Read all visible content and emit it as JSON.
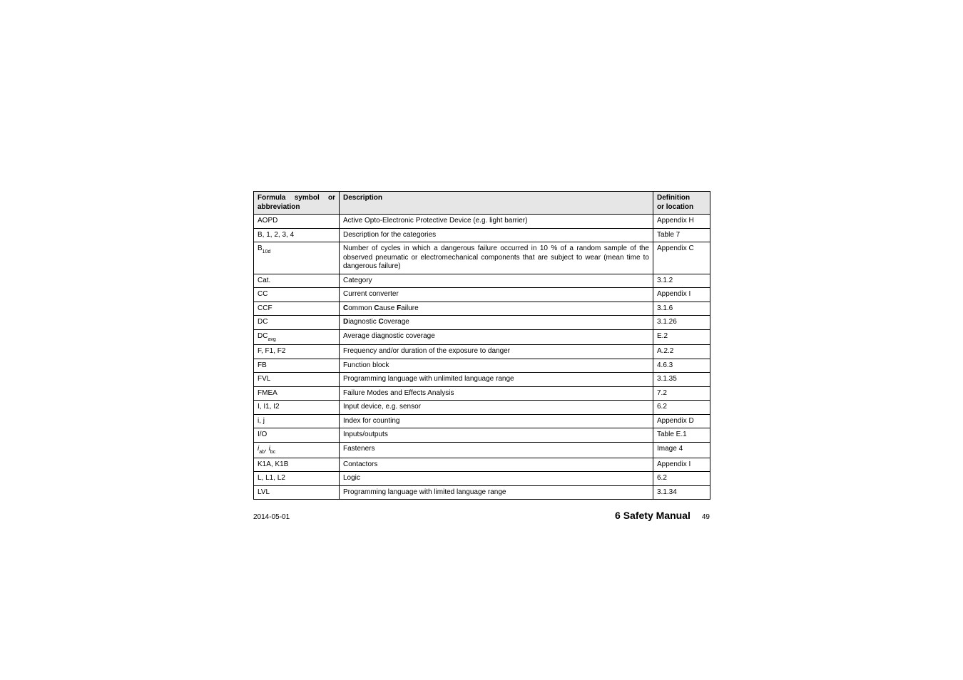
{
  "table": {
    "header": {
      "col1_line1_parts": [
        "Formula",
        "symbol",
        "or"
      ],
      "col1_line2": "abbreviation",
      "col2": "Description",
      "col3_line1": "Definition",
      "col3_line2": "or location"
    },
    "rows": [
      {
        "sym_plain": "AOPD",
        "desc": "Active Opto-Electronic Protective Device (e.g. light barrier)",
        "loc": "Appendix H"
      },
      {
        "sym_plain": "B, 1, 2, 3, 4",
        "desc": "Description for the categories",
        "loc": "Table 7"
      },
      {
        "sym_html": "B<span class=\"sub\">10d</span>",
        "desc": "Number of cycles in which a dangerous failure occurred in 10 % of a random sample of the observed pneumatic or electromechanical components that are subject to wear (mean time to dangerous failure)",
        "desc_justify": true,
        "loc": "Appendix C"
      },
      {
        "sym_plain": "Cat.",
        "desc": "Category",
        "loc": "3.1.2"
      },
      {
        "sym_plain": "CC",
        "desc": "Current converter",
        "loc": "Appendix I"
      },
      {
        "sym_plain": "CCF",
        "desc_html": "<b>C</b>ommon <b>C</b>ause <b>F</b>ailure",
        "loc": "3.1.6"
      },
      {
        "sym_plain": "DC",
        "desc_html": "<b>D</b>iagnostic <b>C</b>overage",
        "loc": "3.1.26"
      },
      {
        "sym_html": "DC<span class=\"sub\">avg</span>",
        "desc": "Average diagnostic coverage",
        "loc": "E.2"
      },
      {
        "sym_plain": "F, F1, F2",
        "desc": "Frequency and/or duration of the exposure to danger",
        "loc": "A.2.2"
      },
      {
        "sym_plain": "FB",
        "desc": "Function block",
        "loc": "4.6.3"
      },
      {
        "sym_plain": "FVL",
        "desc": "Programming language with unlimited language range",
        "loc": "3.1.35"
      },
      {
        "sym_plain": "FMEA",
        "desc": "Failure Modes and Effects Analysis",
        "loc": "7.2"
      },
      {
        "sym_plain": "I, I1, I2",
        "desc": "Input device, e.g. sensor",
        "loc": "6.2"
      },
      {
        "sym_plain": "i, j",
        "desc": "Index for counting",
        "loc": "Appendix D"
      },
      {
        "sym_plain": "I/O",
        "desc": "Inputs/outputs",
        "loc": "Table E.1"
      },
      {
        "sym_html": "<span class=\"ital\">i</span><span class=\"sub\">ab</span>, <span class=\"ital\">i</span><span class=\"sub\">bc</span>",
        "desc": "Fasteners",
        "loc": "Image 4"
      },
      {
        "sym_plain": "K1A, K1B",
        "desc": "Contactors",
        "loc": "Appendix I"
      },
      {
        "sym_plain": "L, L1, L2",
        "desc": "Logic",
        "loc": "6.2"
      },
      {
        "sym_plain": "LVL",
        "desc": "Programming language with limited language range",
        "loc": "3.1.34"
      }
    ]
  },
  "footer": {
    "date": "2014-05-01",
    "title": "6 Safety Manual",
    "page": "49"
  }
}
